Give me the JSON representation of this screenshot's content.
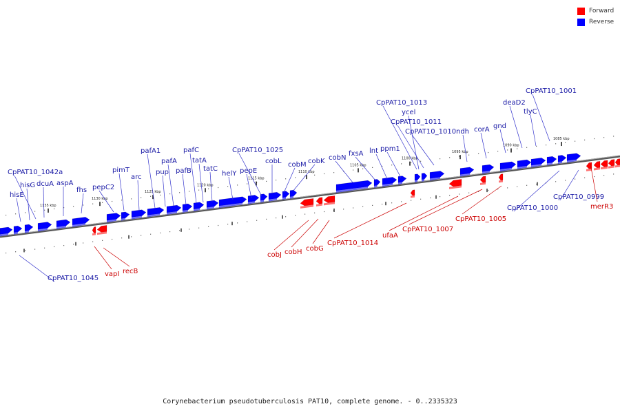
{
  "legend": {
    "items": [
      {
        "label": "Forward",
        "color": "#ff0000"
      },
      {
        "label": "Reverse",
        "color": "#0000ff"
      }
    ]
  },
  "caption": "Corynebacterium pseudotuberculosis PAT10, complete genome. - 0..2335323",
  "colors": {
    "forward": "#ff0000",
    "reverse": "#0000ff",
    "label_forward": "#cc0000",
    "label_reverse": "#1a1aa6"
  },
  "ticks": [
    "1135 kbp",
    "1130 kbp",
    "1125 kbp",
    "1120 kbp",
    "1115 kbp",
    "1110 kbp",
    "1105 kbp",
    "1100 kbp",
    "1095 kbp",
    "1090 kbp",
    "1085 kbp"
  ],
  "genes_reverse": [
    "hisE",
    "hisG",
    "CpPAT10_1042a",
    "dcuA",
    "aspA",
    "fhs",
    "pepC2",
    "pimT",
    "arc",
    "pafA1",
    "pup",
    "pafA",
    "pafB",
    "pafC",
    "tatA",
    "tatC",
    "helY",
    "pepE",
    "CpPAT10_1025",
    "cobL",
    "cobM",
    "cobK",
    "cobN",
    "fxsA",
    "lnt",
    "ppm1",
    "CpPAT10_1013",
    "ycel",
    "CpPAT10_1011",
    "CpPAT10_1010",
    "ndh",
    "corA",
    "gnd",
    "deaD2",
    "tlyC",
    "CpPAT10_1001",
    "CpPAT10_1000",
    "CpPAT10_0999",
    "CpPAT10_1045"
  ],
  "genes_forward": [
    "vapI",
    "recB",
    "cobJ",
    "cobH",
    "cobG",
    "CpPAT10_1014",
    "ufaA",
    "CpPAT10_1007",
    "CpPAT10_1005",
    "merR3"
  ]
}
